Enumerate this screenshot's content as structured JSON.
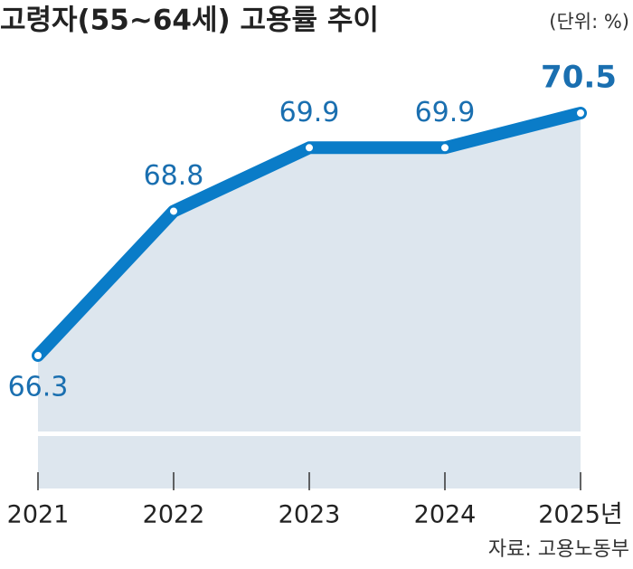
{
  "chart_data": {
    "type": "line",
    "title": "고령자(55~64세) 고용률 추이",
    "unit": "(단위: %)",
    "source": "자료: 고용노동부",
    "categories": [
      "2021",
      "2022",
      "2023",
      "2024",
      "2025년"
    ],
    "values": [
      66.3,
      68.8,
      69.9,
      69.9,
      70.5
    ],
    "color": "#0a7cc8",
    "area_color": "#dde6ee",
    "label_color": "#1a6fb0"
  }
}
